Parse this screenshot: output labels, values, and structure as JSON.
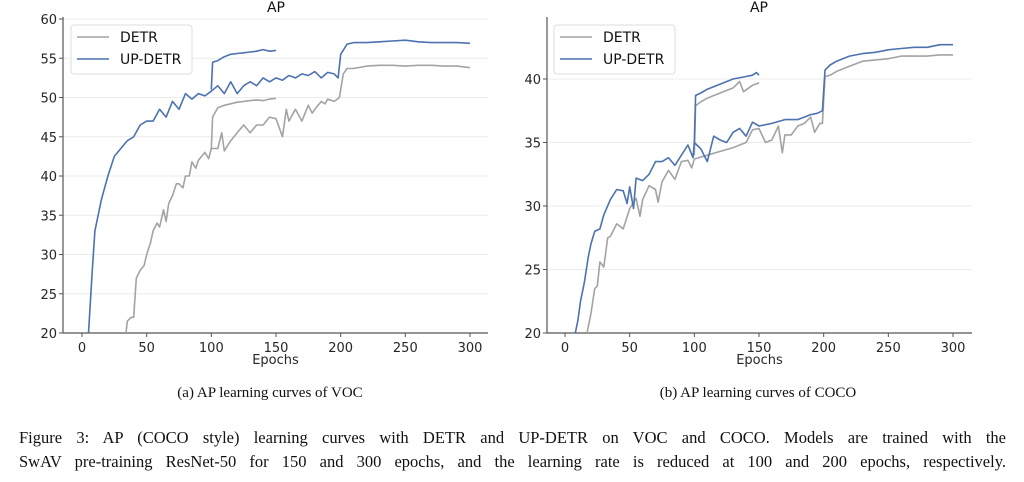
{
  "colors": {
    "detr": "#a3a3a3",
    "updetr": "#4c72b0",
    "grid": "#ececec",
    "axis": "#555555"
  },
  "captions": {
    "sub_a": "(a) AP learning curves of VOC",
    "sub_b": "(b) AP learning curves of COCO",
    "line1": "Figure 3:  AP (COCO style) learning curves with DETR and UP-DETR on VOC and COCO. Models are trained with the",
    "line2": "SwAV pre-training ResNet-50 for 150 and 300 epochs, and the learning rate is reduced at 100 and 200 epochs, respectively."
  },
  "chart_data": [
    {
      "type": "line",
      "title": "AP",
      "xlabel": "Epochs",
      "ylabel": "",
      "xlim": [
        -10,
        308
      ],
      "ylim": [
        20,
        60
      ],
      "xticks": [
        0,
        50,
        100,
        150,
        200,
        250,
        300
      ],
      "yticks": [
        20,
        25,
        30,
        35,
        40,
        45,
        50,
        55,
        60
      ],
      "grid": "horizontal",
      "legend": {
        "placement": "top-left",
        "entries": [
          "DETR",
          "UP-DETR"
        ]
      },
      "series": [
        {
          "name": "DETR",
          "schedule": "300 epochs",
          "color_key": "detr",
          "x": [
            34,
            35,
            38,
            40,
            42,
            45,
            48,
            50,
            53,
            55,
            58,
            60,
            63,
            65,
            67,
            70,
            73,
            75,
            78,
            80,
            83,
            85,
            88,
            90,
            95,
            98,
            100,
            105,
            108,
            110,
            115,
            120,
            125,
            130,
            135,
            140,
            145,
            150,
            155,
            158,
            160,
            165,
            170,
            175,
            178,
            180,
            185,
            188,
            190,
            195,
            199,
            202,
            205,
            210,
            220,
            230,
            240,
            250,
            260,
            270,
            280,
            290,
            300
          ],
          "y": [
            20,
            21.5,
            22,
            22,
            27,
            28,
            28.6,
            30,
            31.5,
            33,
            34,
            33.5,
            35.7,
            34.2,
            36.5,
            37.5,
            39,
            39,
            38.5,
            40,
            40,
            41.8,
            41,
            42,
            43,
            42.2,
            43.5,
            43.5,
            45.5,
            43.2,
            44.5,
            45.5,
            46.5,
            45.5,
            46.5,
            46.5,
            47.5,
            47.3,
            45,
            48.5,
            47,
            48.5,
            47,
            49,
            48,
            48.5,
            49.5,
            49.2,
            49.8,
            49.5,
            50,
            53,
            53.7,
            53.7,
            54,
            54.1,
            54.1,
            54,
            54.1,
            54.1,
            54,
            54,
            53.8
          ]
        },
        {
          "name": "DETR",
          "schedule": "150 epochs",
          "color_key": "detr",
          "x": [
            100,
            101,
            105,
            110,
            115,
            120,
            125,
            130,
            135,
            140,
            145,
            150
          ],
          "y": [
            43.5,
            47.5,
            48.7,
            49,
            49.2,
            49.4,
            49.5,
            49.6,
            49.7,
            49.6,
            49.8,
            49.9
          ]
        },
        {
          "name": "UP-DETR",
          "schedule": "300 epochs",
          "color_key": "updetr",
          "x": [
            5,
            8,
            10,
            15,
            20,
            25,
            30,
            35,
            40,
            45,
            50,
            55,
            60,
            65,
            70,
            75,
            80,
            85,
            90,
            95,
            100,
            105,
            110,
            115,
            120,
            125,
            130,
            135,
            140,
            145,
            150,
            155,
            160,
            165,
            170,
            175,
            180,
            185,
            190,
            195,
            198,
            200,
            205,
            210,
            220,
            230,
            240,
            250,
            260,
            270,
            280,
            290,
            300
          ],
          "y": [
            20,
            28,
            33,
            37,
            40,
            42.5,
            43.5,
            44.5,
            45,
            46.5,
            47,
            47,
            48.5,
            47.5,
            49.5,
            48.5,
            50.5,
            49.8,
            50.5,
            50.2,
            50.8,
            51.5,
            50.5,
            52,
            50.5,
            51.5,
            52,
            51.5,
            52.5,
            52,
            52.5,
            52.2,
            52.8,
            52.5,
            53,
            52.8,
            53.3,
            52.5,
            53.2,
            53,
            52.5,
            55.5,
            56.8,
            57,
            57,
            57.1,
            57.2,
            57.3,
            57.1,
            57,
            57,
            57,
            56.9
          ]
        },
        {
          "name": "UP-DETR",
          "schedule": "150 epochs",
          "color_key": "updetr",
          "x": [
            100,
            101,
            105,
            110,
            115,
            120,
            125,
            130,
            135,
            140,
            145,
            150
          ],
          "y": [
            51,
            54.5,
            54.7,
            55.2,
            55.5,
            55.6,
            55.7,
            55.8,
            55.9,
            56.1,
            55.9,
            56
          ]
        }
      ]
    },
    {
      "type": "line",
      "title": "AP",
      "xlabel": "Epochs",
      "ylabel": "",
      "xlim": [
        -10,
        308
      ],
      "ylim": [
        20,
        45
      ],
      "xticks": [
        0,
        50,
        100,
        150,
        200,
        250,
        300
      ],
      "yticks": [
        20,
        25,
        30,
        35,
        40
      ],
      "grid": "horizontal",
      "legend": {
        "placement": "top-left",
        "entries": [
          "DETR",
          "UP-DETR"
        ]
      },
      "series": [
        {
          "name": "DETR",
          "schedule": "300 epochs",
          "color_key": "detr",
          "x": [
            17,
            20,
            23,
            25,
            27,
            30,
            33,
            35,
            40,
            45,
            50,
            55,
            58,
            60,
            65,
            70,
            72,
            75,
            80,
            85,
            90,
            95,
            98,
            100,
            110,
            120,
            130,
            140,
            145,
            150,
            155,
            160,
            165,
            168,
            170,
            175,
            180,
            185,
            190,
            193,
            197,
            199,
            201,
            205,
            210,
            220,
            230,
            240,
            250,
            260,
            270,
            280,
            290,
            300
          ],
          "y": [
            20,
            21.5,
            23.5,
            23.7,
            25.6,
            25.2,
            27.5,
            27.6,
            28.6,
            28.2,
            29.8,
            30.6,
            29.2,
            30.5,
            31.6,
            31.3,
            30.3,
            31.9,
            32.8,
            32.1,
            33.5,
            33.6,
            33,
            33.7,
            34,
            34.3,
            34.6,
            35,
            36,
            36.1,
            35,
            35.2,
            36.3,
            34.2,
            35.6,
            35.6,
            36.3,
            36.5,
            37,
            35.8,
            36.5,
            36.5,
            40.2,
            40.3,
            40.6,
            41,
            41.4,
            41.5,
            41.6,
            41.8,
            41.8,
            41.8,
            41.9,
            41.9
          ]
        },
        {
          "name": "DETR",
          "schedule": "150 epochs",
          "color_key": "detr",
          "x": [
            100,
            101,
            105,
            110,
            120,
            130,
            135,
            138,
            145,
            150
          ],
          "y": [
            34,
            37.9,
            38.2,
            38.5,
            38.9,
            39.3,
            39.8,
            39,
            39.5,
            39.7
          ]
        },
        {
          "name": "UP-DETR",
          "schedule": "300 epochs",
          "color_key": "updetr",
          "x": [
            8,
            10,
            12,
            15,
            18,
            20,
            23,
            27,
            30,
            35,
            40,
            45,
            48,
            50,
            53,
            55,
            60,
            65,
            70,
            75,
            80,
            85,
            90,
            95,
            99,
            100,
            105,
            110,
            115,
            120,
            125,
            130,
            135,
            140,
            145,
            150,
            160,
            170,
            180,
            190,
            195,
            199,
            201,
            205,
            210,
            220,
            230,
            240,
            250,
            260,
            270,
            280,
            290,
            300
          ],
          "y": [
            20,
            21,
            22.5,
            24,
            26,
            27,
            28,
            28.2,
            29.3,
            30.5,
            31.3,
            31.2,
            30.2,
            31.5,
            29.8,
            32.2,
            32,
            32.5,
            33.5,
            33.5,
            33.8,
            33.2,
            34,
            34.8,
            33.8,
            35,
            34.5,
            33.5,
            35.5,
            35.2,
            35,
            35.8,
            36.1,
            35.5,
            36.6,
            36.3,
            36.5,
            36.8,
            36.8,
            37.2,
            37.3,
            37.5,
            40.7,
            41.1,
            41.4,
            41.8,
            42,
            42.1,
            42.3,
            42.4,
            42.5,
            42.5,
            42.7,
            42.7
          ]
        },
        {
          "name": "UP-DETR",
          "schedule": "150 epochs",
          "color_key": "updetr",
          "x": [
            100,
            101,
            105,
            110,
            120,
            130,
            140,
            145,
            148,
            150
          ],
          "y": [
            35,
            38.7,
            38.9,
            39.2,
            39.6,
            40,
            40.2,
            40.3,
            40.5,
            40.3
          ]
        }
      ]
    }
  ]
}
